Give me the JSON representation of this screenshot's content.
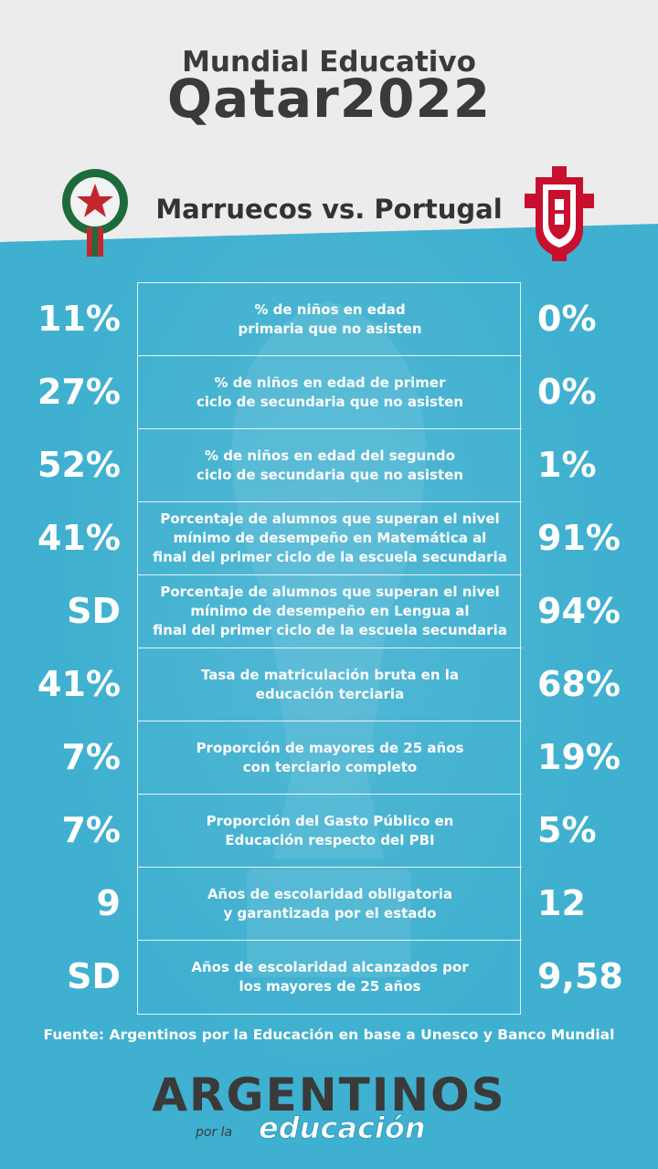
{
  "header": {
    "title_top": "Mundial Educativo",
    "title_main": "Qatar2022",
    "matchup": "Marruecos vs. Portugal"
  },
  "crests": {
    "left": "morocco-federation-crest",
    "right": "portugal-federation-crest"
  },
  "rows": [
    {
      "left": "11%",
      "label": "% de niños en edad\nprimaria que no asisten",
      "right": "0%"
    },
    {
      "left": "27%",
      "label": "% de niños en edad de primer\nciclo de secundaria que no asisten",
      "right": "0%"
    },
    {
      "left": "52%",
      "label": "% de niños en edad del segundo\nciclo de secundaria que no asisten",
      "right": "1%"
    },
    {
      "left": "41%",
      "label": "Porcentaje de alumnos que superan el nivel\nmínimo de desempeño en Matemática al\nfinal del primer ciclo de la escuela secundaria",
      "right": "91%"
    },
    {
      "left": "SD",
      "label": "Porcentaje de alumnos que superan el nivel\nmínimo de desempeño en Lengua al\nfinal del primer ciclo de la escuela secundaria",
      "right": "94%"
    },
    {
      "left": "41%",
      "label": "Tasa de matriculación bruta en la\neducación terciaria",
      "right": "68%"
    },
    {
      "left": "7%",
      "label": "Proporción de mayores de 25 años\ncon terciario completo",
      "right": "19%"
    },
    {
      "left": "7%",
      "label": "Proporción del Gasto Público en\nEducación respecto del PBI",
      "right": "5%"
    },
    {
      "left": "9",
      "label": "Años de escolaridad obligatoria\ny garantizada por el estado",
      "right": "12"
    },
    {
      "left": "SD",
      "label": "Años de escolaridad alcanzados por\nlos mayores de 25 años",
      "right": "9,58"
    }
  ],
  "footer": {
    "source": "Fuente: Argentinos por la Educación en base a Unesco y Banco Mundial",
    "logo_main": "ARGENTINOS",
    "logo_por": "por la",
    "logo_edu": "educación"
  },
  "colors": {
    "background_blue": "#3fb0d0",
    "header_gray": "#ececec",
    "dark_text": "#3a3a3a"
  }
}
